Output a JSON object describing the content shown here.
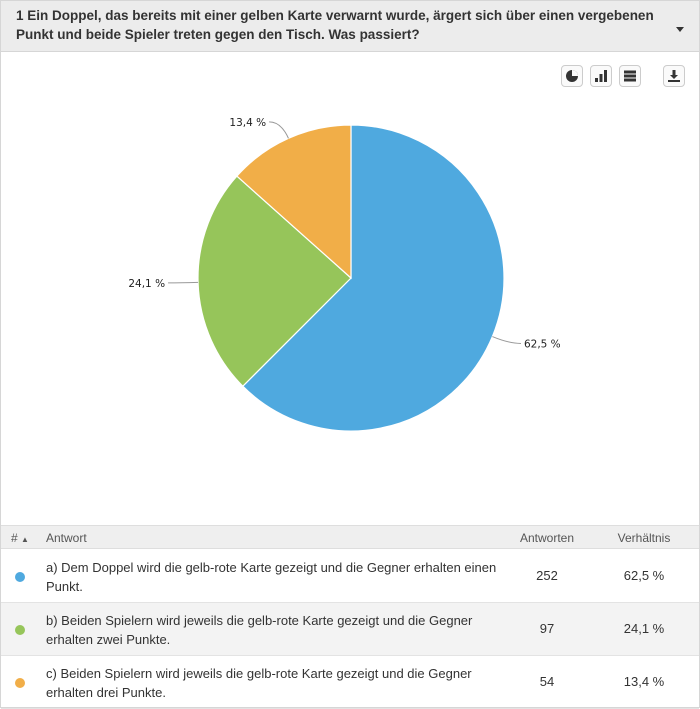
{
  "question": {
    "title": "1 Ein Doppel, das bereits mit einer gelben Karte verwarnt wurde, ärgert sich über einen vergebenen Punkt und beide Spieler treten gegen den Tisch. Was passiert?"
  },
  "toolbar": {
    "icons": [
      "pie-chart-icon",
      "bar-chart-icon",
      "table-icon",
      "download-icon"
    ]
  },
  "chart_data": {
    "type": "pie",
    "categories": [
      "a) Dem Doppel wird die gelb-rote Karte gezeigt und die Gegner erhalten einen Punkt.",
      "b) Beiden Spielern wird jeweils die gelb-rote Karte gezeigt und die Gegner erhalten zwei Punkte.",
      "c) Beiden Spielern wird jeweils die gelb-rote Karte gezeigt und die Gegner erhalten drei Punkte."
    ],
    "values": [
      62.5,
      24.1,
      13.4
    ],
    "counts": [
      252,
      97,
      54
    ],
    "data_labels": [
      "62,5 %",
      "24,1 %",
      "13,4 %"
    ],
    "colors": [
      "#4fa9df",
      "#96c55a",
      "#f1ae48"
    ],
    "legend": "none"
  },
  "table": {
    "headers": {
      "num": "#",
      "answer": "Antwort",
      "count": "Antworten",
      "ratio": "Verhältnis"
    },
    "rows": [
      {
        "text": "a) Dem Doppel wird die gelb-rote Karte gezeigt und die Gegner erhalten einen Punkt.",
        "count": "252",
        "ratio": "62,5 %",
        "color": "#4fa9df"
      },
      {
        "text": "b) Beiden Spielern wird jeweils die gelb-rote Karte gezeigt und die Gegner erhalten zwei Punkte.",
        "count": "97",
        "ratio": "24,1 %",
        "color": "#96c55a"
      },
      {
        "text": "c) Beiden Spielern wird jeweils die gelb-rote Karte gezeigt und die Gegner erhalten drei Punkte.",
        "count": "54",
        "ratio": "13,4 %",
        "color": "#f1ae48"
      }
    ]
  }
}
